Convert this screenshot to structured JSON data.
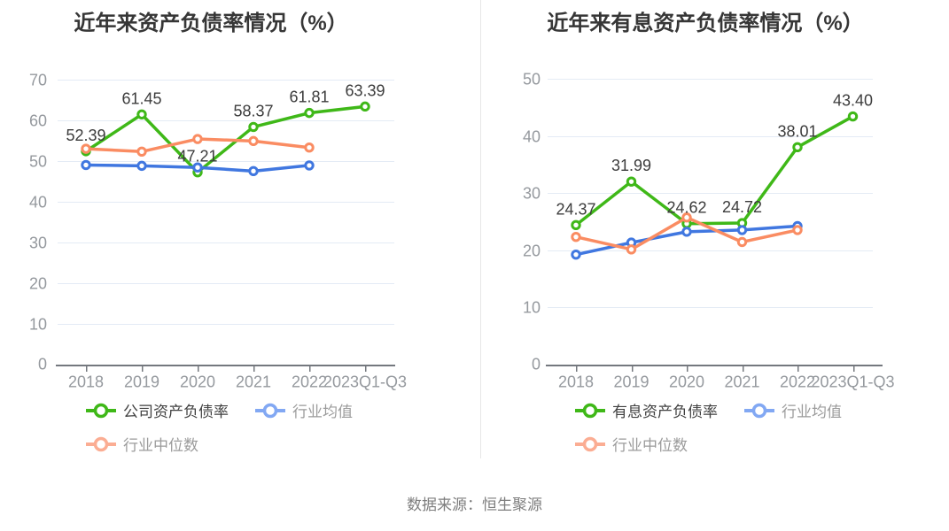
{
  "source_note": "数据来源：恒生聚源",
  "styles": {
    "company_green": "#3fb818",
    "average_blue": "#4077e0",
    "median_orange": "#fa8c62",
    "legend_blue": "#82a8f3",
    "legend_orange": "#fbad93",
    "grid_color": "#e4ebf5",
    "axis_color": "#74787e",
    "axis_label_color": "#95999e",
    "data_label_color": "#3c3c3c",
    "title_color": "#363636",
    "legend_primary": "#404040",
    "legend_secondary": "#9b9b9b",
    "source_color": "#7e7e7e",
    "divider_color": "#e7e7e7",
    "background": "#ffffff"
  },
  "chart_data": [
    {
      "type": "line",
      "title": "近年来资产负债率情况（%）",
      "categories": [
        "2018",
        "2019",
        "2020",
        "2021",
        "2022",
        "2023Q1-Q3"
      ],
      "ylim": [
        0,
        70
      ],
      "y_ticks": [
        0,
        10,
        20,
        30,
        40,
        50,
        60,
        70
      ],
      "grid": true,
      "legend_position": "bottom",
      "series": [
        {
          "name": "公司资产负债率",
          "color": "#3fb818",
          "legend_color": "#3fb818",
          "data_labels": true,
          "values": [
            52.39,
            61.45,
            47.21,
            58.37,
            61.81,
            63.39
          ]
        },
        {
          "name": "行业均值",
          "color": "#4077e0",
          "legend_color": "#82a8f3",
          "data_labels": false,
          "values": [
            49.0,
            48.8,
            48.4,
            47.5,
            48.9,
            null
          ]
        },
        {
          "name": "行业中位数",
          "color": "#fa8c62",
          "legend_color": "#fbad93",
          "data_labels": false,
          "values": [
            53.0,
            52.3,
            55.4,
            54.9,
            53.3,
            null
          ]
        }
      ]
    },
    {
      "type": "line",
      "title": "近年来有息资产负债率情况（%）",
      "categories": [
        "2018",
        "2019",
        "2020",
        "2021",
        "2022",
        "2023Q1-Q3"
      ],
      "ylim": [
        0,
        50
      ],
      "y_ticks": [
        0,
        10,
        20,
        30,
        40,
        50
      ],
      "grid": true,
      "legend_position": "bottom",
      "series": [
        {
          "name": "有息资产负债率",
          "color": "#3fb818",
          "legend_color": "#3fb818",
          "data_labels": true,
          "values": [
            24.37,
            31.99,
            24.62,
            24.72,
            38.01,
            43.4
          ]
        },
        {
          "name": "行业均值",
          "color": "#4077e0",
          "legend_color": "#82a8f3",
          "data_labels": false,
          "values": [
            19.2,
            21.3,
            23.2,
            23.5,
            24.2,
            null
          ]
        },
        {
          "name": "行业中位数",
          "color": "#fa8c62",
          "legend_color": "#fbad93",
          "data_labels": false,
          "values": [
            22.3,
            20.1,
            25.7,
            21.4,
            23.5,
            null
          ]
        }
      ]
    }
  ]
}
